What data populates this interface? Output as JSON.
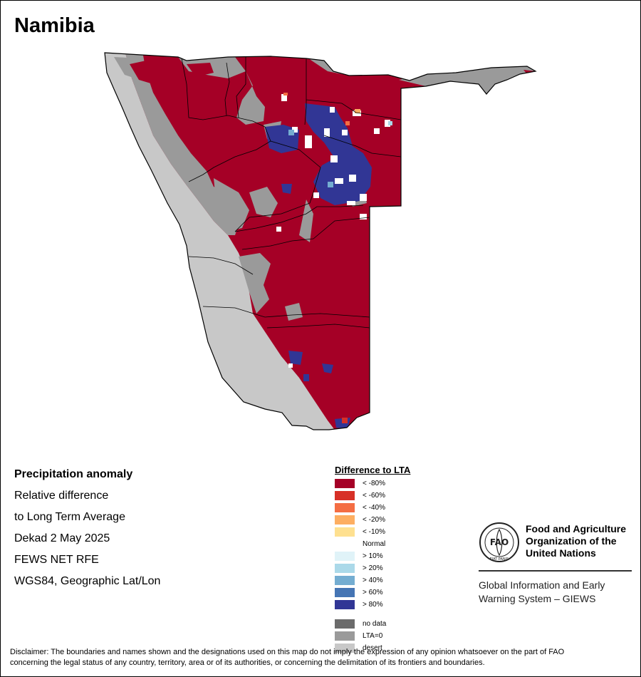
{
  "map_title": "Namibia",
  "info": {
    "heading": "Precipitation anomaly",
    "line1": "Relative difference",
    "line2": "to Long Term Average",
    "period": "Dekad 2 May 2025",
    "source": "FEWS NET RFE",
    "projection": "WGS84, Geographic Lat/Lon"
  },
  "legend": {
    "title": "Difference to LTA",
    "items": [
      {
        "label": "< -80%",
        "color": "#a50026"
      },
      {
        "label": "< -60%",
        "color": "#d73027"
      },
      {
        "label": "< -40%",
        "color": "#f46d43"
      },
      {
        "label": "< -20%",
        "color": "#fdae61"
      },
      {
        "label": "< -10%",
        "color": "#fee090"
      },
      {
        "label": "Normal",
        "color": "#ffffff"
      },
      {
        "label": "> 10%",
        "color": "#e0f3f8"
      },
      {
        "label": "> 20%",
        "color": "#abd9e9"
      },
      {
        "label": "> 40%",
        "color": "#74add1"
      },
      {
        "label": "> 60%",
        "color": "#4575b4"
      },
      {
        "label": "> 80%",
        "color": "#313695"
      }
    ],
    "extra": [
      {
        "label": "no data",
        "color": "#6b6b6b"
      },
      {
        "label": "LTA=0",
        "color": "#9a9a9a"
      },
      {
        "label": "desert",
        "color": "#c8c8c8"
      }
    ]
  },
  "logo": {
    "org_line1": "Food and Agriculture",
    "org_line2": "Organization of the",
    "org_line3": "United Nations",
    "mark_text": "FAO",
    "motto": "FIAT PANIS",
    "system_line1": "Global Information and Early",
    "system_line2": "Warning System – GIEWS"
  },
  "disclaimer": {
    "line1": "Disclaimer: The boundaries and names shown and the designations used on this map do not imply the expression of any opinion whatsoever on the part of FAO",
    "line2": "concerning the legal status of any country, territory, area or of its authorities, or concerning the delimitation of its frontiers and boundaries."
  }
}
